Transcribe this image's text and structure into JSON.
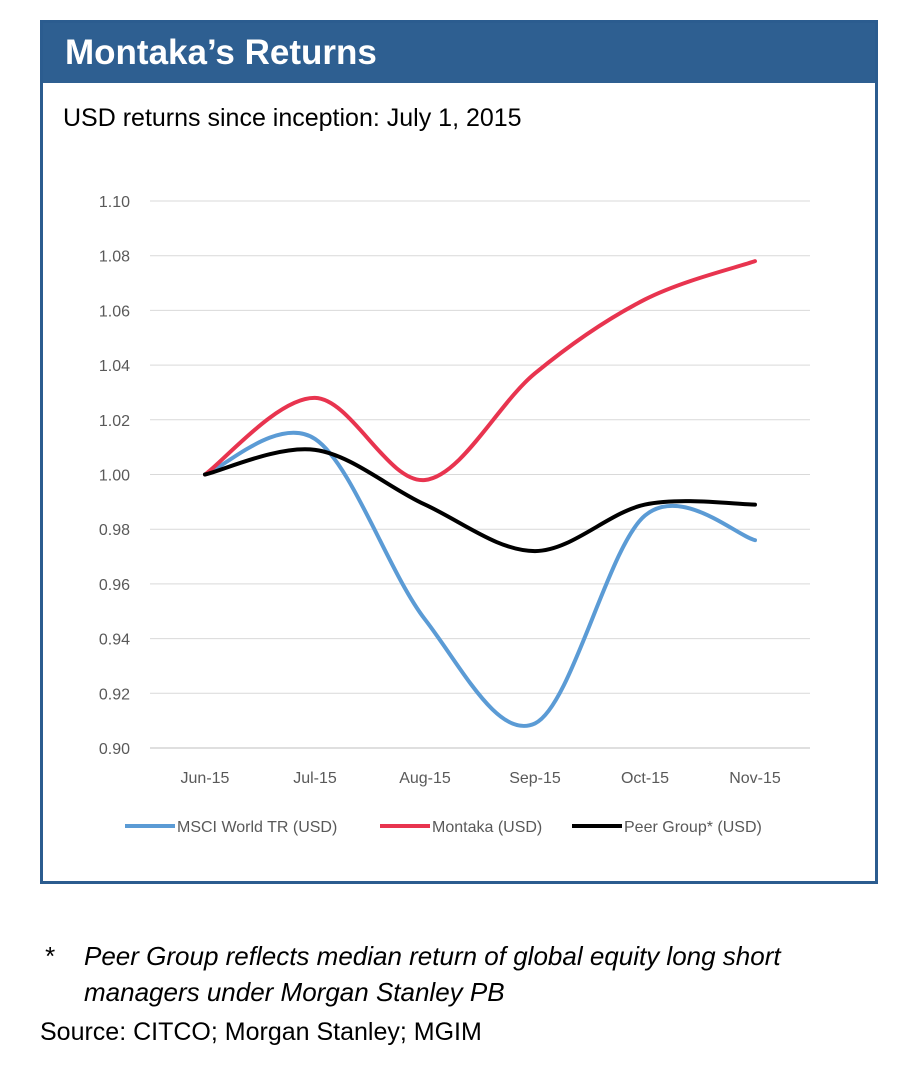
{
  "panel": {
    "title": "Montaka’s Returns",
    "subtitle": "USD returns since inception: July 1, 2015",
    "accent": "#2e5f91"
  },
  "chart_data": {
    "type": "line",
    "title": "",
    "xlabel": "",
    "ylabel": "",
    "categories": [
      "Jun-15",
      "Jul-15",
      "Aug-15",
      "Sep-15",
      "Oct-15",
      "Nov-15"
    ],
    "ylim": [
      0.9,
      1.1
    ],
    "yticks": [
      "0.90",
      "0.92",
      "0.94",
      "0.96",
      "0.98",
      "1.00",
      "1.02",
      "1.04",
      "1.06",
      "1.08",
      "1.10"
    ],
    "grid": true,
    "legend_position": "bottom",
    "series": [
      {
        "name": "MSCI World TR (USD)",
        "color": "#5b9bd5",
        "values": [
          1.0,
          1.013,
          0.947,
          0.909,
          0.985,
          0.976
        ]
      },
      {
        "name": "Montaka (USD)",
        "color": "#e8344f",
        "values": [
          1.0,
          1.028,
          0.998,
          1.037,
          1.064,
          1.078
        ]
      },
      {
        "name": "Peer Group* (USD)",
        "color": "#000000",
        "values": [
          1.0,
          1.009,
          0.989,
          0.972,
          0.989,
          0.989
        ]
      }
    ]
  },
  "footnote": {
    "mark": "*",
    "text": "Peer Group reflects median return of global equity long short managers under Morgan Stanley PB"
  },
  "source": "Source: CITCO; Morgan Stanley; MGIM"
}
